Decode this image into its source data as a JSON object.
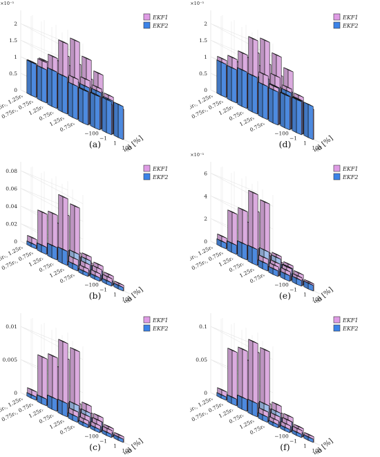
{
  "legend": {
    "ekf1": "EKF1",
    "ekf2": "EKF2",
    "ekf1_color": "#d98be0",
    "ekf2_color": "#3b83e8"
  },
  "chart_data": [
    {
      "type": "bar3d",
      "panel": "(a)",
      "zlabel": "δi_{sA} [-]",
      "exponent": "×10⁻³",
      "zticks": [
        "0",
        "0.5",
        "1",
        "1.5",
        "2"
      ],
      "zmax": 2.4,
      "xlabel": "Speed [%]",
      "xticks": [
        "−100",
        "−1",
        "1",
        "100"
      ],
      "yticks": [
        "1.25r_r, 1.25r_s",
        "0.75r_r, 0.75r_s",
        "1.25r_r",
        "0.75r_r",
        "1.25r_s",
        "0.75r_s"
      ],
      "series": [
        {
          "name": "EKF1",
          "values": [
            [
              1.0,
              1.2,
              2.1,
              1.5,
              1.2,
              1.0
            ],
            [
              1.0,
              1.3,
              2.3,
              1.7,
              1.4,
              1.2
            ],
            [
              0.9,
              1.2,
              1.9,
              1.6,
              1.4,
              1.1
            ],
            [
              0.9,
              1.1,
              1.6,
              1.3,
              1.1,
              1.0
            ]
          ]
        },
        {
          "name": "EKF2",
          "values": [
            [
              1.0,
              1.0,
              1.1,
              1.1,
              1.0,
              1.0
            ],
            [
              1.0,
              1.1,
              1.1,
              1.1,
              1.0,
              1.0
            ],
            [
              1.0,
              1.1,
              1.1,
              1.0,
              1.0,
              1.0
            ],
            [
              1.0,
              1.0,
              1.1,
              1.0,
              1.0,
              1.0
            ]
          ]
        }
      ]
    },
    {
      "type": "bar3d",
      "panel": "(d)",
      "zlabel": "δi_{sB} [-]",
      "exponent": "×10⁻³",
      "zticks": [
        "0",
        "0.5",
        "1",
        "1.5",
        "2"
      ],
      "zmax": 2.4,
      "xlabel": "Speed [%]",
      "xticks": [
        "−100",
        "−1",
        "1",
        "100"
      ],
      "yticks": [
        "1.25r_r, 1.25r_s",
        "0.75r_r, 0.75r_s",
        "1.25r_r",
        "0.75r_r",
        "1.25r_s",
        "0.75r_s"
      ],
      "series": [
        {
          "name": "EKF1",
          "values": [
            [
              1.1,
              1.3,
              2.2,
              1.6,
              1.3,
              1.1
            ],
            [
              1.0,
              1.4,
              2.3,
              1.8,
              1.5,
              1.2
            ],
            [
              1.0,
              1.2,
              2.0,
              1.6,
              1.4,
              1.1
            ],
            [
              0.9,
              1.1,
              1.7,
              1.4,
              1.2,
              1.0
            ]
          ]
        },
        {
          "name": "EKF2",
          "values": [
            [
              1.0,
              1.0,
              1.1,
              1.1,
              1.0,
              1.0
            ],
            [
              1.0,
              1.1,
              1.2,
              1.1,
              1.0,
              1.0
            ],
            [
              1.0,
              1.1,
              1.1,
              1.0,
              1.0,
              1.0
            ],
            [
              1.0,
              1.0,
              1.1,
              1.0,
              1.0,
              1.0
            ]
          ]
        }
      ]
    },
    {
      "type": "bar3d",
      "panel": "(b)",
      "zlabel": "δi_{sA} [-]",
      "exponent": "",
      "zticks": [
        "0",
        "0.02",
        "0.04",
        "0.06",
        "0.08"
      ],
      "zmax": 0.09,
      "xlabel": "Speed [%]",
      "xticks": [
        "−100",
        "−1",
        "1",
        "100"
      ],
      "yticks": [
        "1.25r_r, 1.25r_s",
        "0.75r_r, 0.75r_s",
        "1.25r_r",
        "0.75r_r",
        "1.25r_s",
        "0.75r_s"
      ],
      "series": [
        {
          "name": "EKF1",
          "values": [
            [
              0.008,
              0.012,
              0.075,
              0.05,
              0.045,
              0.01
            ],
            [
              0.008,
              0.012,
              0.07,
              0.055,
              0.04,
              0.01
            ],
            [
              0.008,
              0.012,
              0.02,
              0.018,
              0.015,
              0.01
            ],
            [
              0.006,
              0.01,
              0.015,
              0.012,
              0.012,
              0.008
            ]
          ]
        },
        {
          "name": "EKF2",
          "values": [
            [
              0.004,
              0.006,
              0.016,
              0.014,
              0.008,
              0.004
            ],
            [
              0.004,
              0.006,
              0.018,
              0.016,
              0.008,
              0.004
            ],
            [
              0.004,
              0.006,
              0.016,
              0.014,
              0.008,
              0.004
            ],
            [
              0.004,
              0.005,
              0.01,
              0.01,
              0.006,
              0.004
            ]
          ]
        }
      ]
    },
    {
      "type": "bar3d",
      "panel": "(e)",
      "zlabel": "δi_{sB} [-]",
      "exponent": "×10⁻³",
      "zticks": [
        "0",
        "2",
        "4",
        "6"
      ],
      "zmax": 7,
      "xlabel": "Speed [%]",
      "xticks": [
        "−100",
        "−1",
        "1",
        "100"
      ],
      "yticks": [
        "1.25r_r, 1.25r_s",
        "0.75r_r, 0.75r_s",
        "1.25r_r",
        "0.75r_r",
        "1.25r_s",
        "0.75r_s"
      ],
      "series": [
        {
          "name": "EKF1",
          "values": [
            [
              0.8,
              1.0,
              6.2,
              4.2,
              3.5,
              0.9
            ],
            [
              0.8,
              1.0,
              5.8,
              4.6,
              3.2,
              0.9
            ],
            [
              0.7,
              1.0,
              1.6,
              1.4,
              1.2,
              0.8
            ],
            [
              0.6,
              0.9,
              1.2,
              1.0,
              1.0,
              0.7
            ]
          ]
        },
        {
          "name": "EKF2",
          "values": [
            [
              0.5,
              0.6,
              1.4,
              1.3,
              0.8,
              0.5
            ],
            [
              0.5,
              0.6,
              1.6,
              1.4,
              0.8,
              0.5
            ],
            [
              0.5,
              0.6,
              1.4,
              1.2,
              0.8,
              0.5
            ],
            [
              0.5,
              0.5,
              1.0,
              0.9,
              0.6,
              0.5
            ]
          ]
        }
      ]
    },
    {
      "type": "bar3d",
      "panel": "(c)",
      "zlabel": "δi_{sA} [-]",
      "exponent": "",
      "zticks": [
        "0",
        "0.005",
        "0.01"
      ],
      "zmax": 0.012,
      "xlabel": "Speed [%]",
      "xticks": [
        "−100",
        "−1",
        "1",
        "100"
      ],
      "yticks": [
        "1.25r_r, 1.25r_s",
        "0.75r_r, 0.75r_s",
        "1.25r_r",
        "0.75r_r",
        "1.25r_s",
        "0.75r_s"
      ],
      "series": [
        {
          "name": "EKF1",
          "values": [
            [
              0.001,
              0.0015,
              0.011,
              0.008,
              0.007,
              0.0012
            ],
            [
              0.001,
              0.0015,
              0.0105,
              0.0085,
              0.0065,
              0.0012
            ],
            [
              0.001,
              0.0015,
              0.003,
              0.0025,
              0.002,
              0.0012
            ],
            [
              0.0008,
              0.0012,
              0.002,
              0.0018,
              0.0015,
              0.001
            ]
          ]
        },
        {
          "name": "EKF2",
          "values": [
            [
              0.0005,
              0.0008,
              0.002,
              0.0018,
              0.001,
              0.0005
            ],
            [
              0.0005,
              0.0008,
              0.0024,
              0.002,
              0.001,
              0.0005
            ],
            [
              0.0005,
              0.0008,
              0.002,
              0.0018,
              0.001,
              0.0005
            ],
            [
              0.0005,
              0.0006,
              0.0014,
              0.0012,
              0.0008,
              0.0005
            ]
          ]
        }
      ]
    },
    {
      "type": "bar3d",
      "panel": "(f)",
      "zlabel": "δi_{sB} [-]",
      "exponent": "",
      "zticks": [
        "0",
        "0.05",
        "0.1"
      ],
      "zmax": 0.12,
      "xlabel": "Speed [%]",
      "xticks": [
        "−100",
        "−1",
        "1",
        "100"
      ],
      "yticks": [
        "1.25r_r, 1.25r_s",
        "0.75r_r, 0.75r_s",
        "1.25r_r",
        "0.75r_r",
        "1.25r_s",
        "0.75r_s"
      ],
      "series": [
        {
          "name": "EKF1",
          "values": [
            [
              0.01,
              0.015,
              0.11,
              0.09,
              0.08,
              0.012
            ],
            [
              0.01,
              0.015,
              0.105,
              0.095,
              0.075,
              0.012
            ],
            [
              0.01,
              0.015,
              0.03,
              0.025,
              0.02,
              0.012
            ],
            [
              0.008,
              0.012,
              0.02,
              0.018,
              0.015,
              0.01
            ]
          ]
        },
        {
          "name": "EKF2",
          "values": [
            [
              0.005,
              0.008,
              0.02,
              0.018,
              0.01,
              0.005
            ],
            [
              0.005,
              0.008,
              0.024,
              0.02,
              0.01,
              0.005
            ],
            [
              0.005,
              0.008,
              0.02,
              0.018,
              0.01,
              0.005
            ],
            [
              0.005,
              0.006,
              0.014,
              0.012,
              0.008,
              0.005
            ]
          ]
        }
      ]
    }
  ]
}
